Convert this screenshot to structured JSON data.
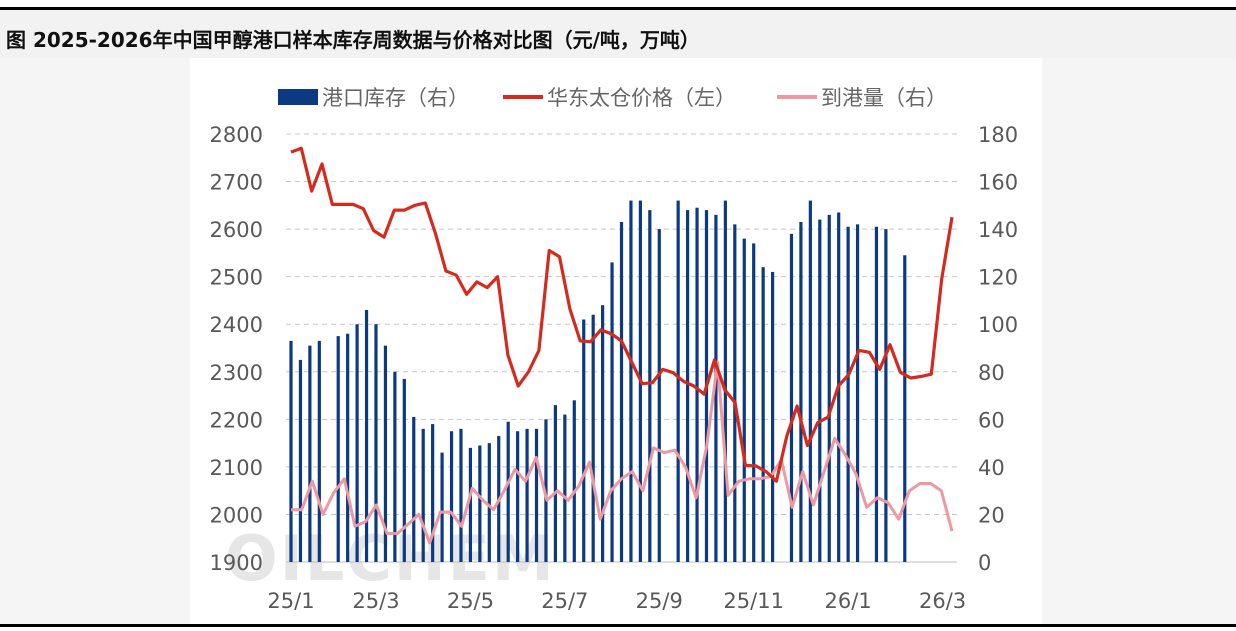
{
  "title": "图 2025-2026年中国甲醇港口样本库存周数据与价格对比图（元/吨，万吨）",
  "watermark": "OILCHEM",
  "colors": {
    "inventory": "#0b3a83",
    "price": "#d42b1e",
    "arrivals": "#ee98a2",
    "grid": "#c8c8c8",
    "axis_text": "#595959"
  },
  "chart_data": {
    "type": "bar",
    "x_tick_labels": [
      "25/1",
      "25/3",
      "25/5",
      "25/7",
      "25/9",
      "25/11",
      "26/1",
      "26/3"
    ],
    "x_tick_index": [
      0,
      9,
      19,
      29,
      39,
      49,
      59,
      69
    ],
    "y_left": {
      "min": 1900,
      "max": 2800,
      "ticks": [
        1900,
        2000,
        2100,
        2200,
        2300,
        2400,
        2500,
        2600,
        2700,
        2800
      ]
    },
    "y_right": {
      "min": 0,
      "max": 180,
      "ticks": [
        0,
        20,
        40,
        60,
        80,
        100,
        120,
        140,
        160,
        180
      ]
    },
    "grid": true,
    "legend_position": "top",
    "series": [
      {
        "name": "港口库存（右）",
        "type": "bar",
        "axis": "right",
        "values": [
          93,
          85,
          91,
          93,
          0,
          95,
          96,
          100,
          106,
          100,
          91,
          80,
          77,
          61,
          56,
          58,
          46,
          55,
          56,
          48,
          49,
          50,
          53,
          59,
          55,
          56,
          56,
          60,
          66,
          62,
          68,
          102,
          104,
          108,
          126,
          143,
          152,
          152,
          148,
          140,
          0,
          152,
          148,
          149,
          148,
          146,
          152,
          142,
          136,
          134,
          124,
          122,
          0,
          138,
          143,
          152,
          144,
          146,
          147,
          141,
          142,
          0,
          141,
          140,
          0,
          129
        ],
        "note_values_in": "万吨"
      },
      {
        "name": "华东太仓价格（左）",
        "type": "line",
        "axis": "left",
        "values": [
          2762,
          2770,
          2680,
          2737,
          2652,
          2652,
          2652,
          2643,
          2597,
          2583,
          2640,
          2640,
          2650,
          2655,
          2590,
          2512,
          2503,
          2463,
          2489,
          2477,
          2500,
          2335,
          2270,
          2300,
          2345,
          2555,
          2542,
          2432,
          2365,
          2363,
          2388,
          2380,
          2365,
          2320,
          2275,
          2277,
          2305,
          2298,
          2280,
          2270,
          2253,
          2325,
          2262,
          2235,
          2103,
          2102,
          2090,
          2070,
          2165,
          2228,
          2145,
          2193,
          2205,
          2270,
          2294,
          2345,
          2341,
          2305,
          2357,
          2299,
          2287,
          2290,
          2295,
          2495,
          2625
        ],
        "note_values_in": "元/吨"
      },
      {
        "name": "到港量（右）",
        "type": "line",
        "axis": "right",
        "values": [
          22,
          22,
          34,
          20,
          29,
          35,
          15,
          17,
          24,
          12,
          12,
          16,
          20,
          8,
          21,
          21,
          15,
          31,
          26,
          22,
          30,
          39,
          34,
          44,
          26,
          30,
          26,
          32,
          42,
          18,
          30,
          35,
          38,
          30,
          48,
          46,
          47,
          40,
          27,
          49,
          84,
          28,
          34,
          35,
          35,
          36,
          43,
          23,
          38,
          24,
          38,
          52,
          45,
          37,
          23,
          27,
          25,
          18,
          30,
          33,
          33,
          30,
          13
        ]
      }
    ]
  },
  "legend": [
    {
      "label": "港口库存（右）",
      "kind": "bar"
    },
    {
      "label": "华东太仓价格（左）",
      "kind": "price"
    },
    {
      "label": "到港量（右）",
      "kind": "arrivals"
    }
  ]
}
